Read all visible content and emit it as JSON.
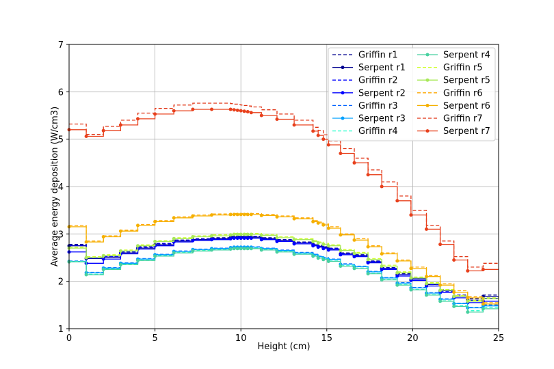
{
  "chart_data": {
    "type": "line",
    "title": "",
    "xlabel": "Height (cm)",
    "ylabel": "Average energy deposition (W/cm3)",
    "xlim": [
      0,
      25
    ],
    "ylim": [
      1,
      7
    ],
    "xticks": [
      0,
      5,
      10,
      15,
      20,
      25
    ],
    "yticks": [
      1,
      2,
      3,
      4,
      5,
      6,
      7
    ],
    "grid": true,
    "legend_position": "upper-right, two columns",
    "step_edges": [
      0,
      1,
      2,
      3,
      4,
      5,
      6.1,
      7.2,
      8.3,
      9.4,
      9.6,
      9.8,
      10.0,
      10.2,
      10.4,
      10.6,
      11.2,
      12.1,
      13.1,
      14.2,
      14.5,
      14.8,
      15.1,
      15.8,
      16.6,
      17.4,
      18.2,
      19.1,
      19.9,
      20.8,
      21.6,
      22.4,
      23.2,
      24.1,
      25
    ],
    "series": [
      {
        "name": "Griffin r1",
        "color": "#00008f",
        "style": "dashed",
        "values": [
          2.78,
          2.5,
          2.53,
          2.63,
          2.73,
          2.8,
          2.87,
          2.9,
          2.92,
          2.95,
          2.95,
          2.95,
          2.95,
          2.95,
          2.95,
          2.95,
          2.92,
          2.88,
          2.83,
          2.79,
          2.76,
          2.73,
          2.7,
          2.6,
          2.56,
          2.43,
          2.29,
          2.16,
          2.07,
          1.95,
          1.82,
          1.71,
          1.63,
          1.71
        ]
      },
      {
        "name": "Serpent r1",
        "color": "#00008f",
        "style": "solid-marker",
        "values": [
          2.75,
          2.48,
          2.51,
          2.6,
          2.7,
          2.77,
          2.85,
          2.88,
          2.9,
          2.92,
          2.93,
          2.93,
          2.93,
          2.93,
          2.93,
          2.93,
          2.9,
          2.86,
          2.81,
          2.77,
          2.74,
          2.71,
          2.68,
          2.58,
          2.54,
          2.41,
          2.27,
          2.14,
          2.05,
          1.93,
          1.8,
          1.68,
          1.6,
          1.68
        ]
      },
      {
        "name": "Griffin r2",
        "color": "#0000ff",
        "style": "dashed",
        "values": [
          2.76,
          2.49,
          2.52,
          2.62,
          2.71,
          2.79,
          2.86,
          2.89,
          2.91,
          2.93,
          2.94,
          2.94,
          2.94,
          2.94,
          2.94,
          2.94,
          2.91,
          2.87,
          2.82,
          2.78,
          2.75,
          2.72,
          2.69,
          2.59,
          2.55,
          2.42,
          2.28,
          2.14,
          2.05,
          1.93,
          1.79,
          1.68,
          1.6,
          1.64
        ]
      },
      {
        "name": "Serpent r2",
        "color": "#0000ff",
        "style": "solid-marker",
        "values": [
          2.62,
          2.38,
          2.47,
          2.58,
          2.68,
          2.75,
          2.83,
          2.86,
          2.88,
          2.9,
          2.91,
          2.91,
          2.91,
          2.91,
          2.91,
          2.91,
          2.88,
          2.84,
          2.79,
          2.75,
          2.72,
          2.69,
          2.66,
          2.56,
          2.52,
          2.39,
          2.25,
          2.11,
          2.02,
          1.9,
          1.76,
          1.65,
          1.55,
          1.58
        ]
      },
      {
        "name": "Griffin r3",
        "color": "#0063ff",
        "style": "dashed",
        "values": [
          2.43,
          2.19,
          2.29,
          2.39,
          2.48,
          2.57,
          2.64,
          2.68,
          2.7,
          2.72,
          2.73,
          2.73,
          2.73,
          2.73,
          2.73,
          2.73,
          2.7,
          2.66,
          2.61,
          2.57,
          2.53,
          2.5,
          2.47,
          2.37,
          2.32,
          2.21,
          2.08,
          1.97,
          1.87,
          1.76,
          1.63,
          1.54,
          1.45,
          1.5
        ]
      },
      {
        "name": "Serpent r3",
        "color": "#00a0ff",
        "style": "solid-marker",
        "values": [
          2.42,
          2.18,
          2.28,
          2.38,
          2.47,
          2.56,
          2.63,
          2.67,
          2.69,
          2.71,
          2.72,
          2.72,
          2.72,
          2.72,
          2.72,
          2.72,
          2.69,
          2.65,
          2.6,
          2.56,
          2.52,
          2.49,
          2.46,
          2.36,
          2.31,
          2.2,
          2.07,
          1.96,
          1.86,
          1.75,
          1.62,
          1.53,
          1.44,
          1.48
        ]
      },
      {
        "name": "Griffin r4",
        "color": "#29ffce",
        "style": "dashed",
        "values": [
          2.42,
          2.15,
          2.26,
          2.36,
          2.45,
          2.54,
          2.61,
          2.65,
          2.67,
          2.69,
          2.7,
          2.7,
          2.7,
          2.7,
          2.7,
          2.7,
          2.67,
          2.63,
          2.58,
          2.54,
          2.5,
          2.47,
          2.43,
          2.33,
          2.28,
          2.17,
          2.04,
          1.93,
          1.83,
          1.72,
          1.59,
          1.49,
          1.38,
          1.45
        ]
      },
      {
        "name": "Serpent r4",
        "color": "#48d1a0",
        "style": "solid-marker",
        "values": [
          2.41,
          2.14,
          2.25,
          2.35,
          2.44,
          2.53,
          2.6,
          2.64,
          2.66,
          2.68,
          2.69,
          2.69,
          2.69,
          2.69,
          2.69,
          2.69,
          2.66,
          2.62,
          2.57,
          2.53,
          2.49,
          2.46,
          2.42,
          2.32,
          2.27,
          2.16,
          2.03,
          1.92,
          1.82,
          1.71,
          1.58,
          1.47,
          1.35,
          1.42
        ]
      },
      {
        "name": "Griffin r5",
        "color": "#ceff29",
        "style": "dashed",
        "values": [
          2.72,
          2.52,
          2.56,
          2.66,
          2.77,
          2.86,
          2.92,
          2.96,
          2.98,
          3.0,
          3.01,
          3.01,
          3.01,
          3.01,
          3.01,
          3.01,
          2.99,
          2.94,
          2.9,
          2.86,
          2.83,
          2.8,
          2.77,
          2.67,
          2.61,
          2.48,
          2.34,
          2.2,
          2.09,
          1.97,
          1.83,
          1.7,
          1.6,
          1.65
        ]
      },
      {
        "name": "Serpent r5",
        "color": "#a8e85a",
        "style": "solid-marker",
        "values": [
          2.7,
          2.5,
          2.54,
          2.64,
          2.75,
          2.84,
          2.9,
          2.94,
          2.96,
          2.98,
          2.99,
          2.99,
          2.99,
          2.99,
          2.99,
          2.99,
          2.97,
          2.92,
          2.88,
          2.84,
          2.81,
          2.78,
          2.75,
          2.65,
          2.59,
          2.46,
          2.32,
          2.18,
          2.07,
          1.95,
          1.81,
          1.68,
          1.58,
          1.63
        ]
      },
      {
        "name": "Griffin r6",
        "color": "#ffa700",
        "style": "dashed",
        "values": [
          3.18,
          2.85,
          2.96,
          3.08,
          3.2,
          3.28,
          3.36,
          3.4,
          3.42,
          3.43,
          3.43,
          3.43,
          3.43,
          3.43,
          3.43,
          3.43,
          3.41,
          3.38,
          3.34,
          3.28,
          3.25,
          3.21,
          3.15,
          3.0,
          2.9,
          2.75,
          2.6,
          2.45,
          2.3,
          2.12,
          1.95,
          1.8,
          1.68,
          1.55
        ]
      },
      {
        "name": "Serpent r6",
        "color": "#f5b000",
        "style": "solid-marker",
        "values": [
          3.15,
          2.83,
          2.94,
          3.06,
          3.18,
          3.26,
          3.34,
          3.38,
          3.4,
          3.41,
          3.41,
          3.41,
          3.41,
          3.41,
          3.41,
          3.41,
          3.39,
          3.36,
          3.32,
          3.26,
          3.23,
          3.19,
          3.12,
          2.98,
          2.87,
          2.73,
          2.58,
          2.43,
          2.27,
          2.1,
          1.92,
          1.77,
          1.65,
          1.52
        ]
      },
      {
        "name": "Griffin r7",
        "color": "#e03010",
        "style": "dashed",
        "values": [
          5.32,
          5.1,
          5.27,
          5.4,
          5.55,
          5.65,
          5.72,
          5.76,
          5.76,
          5.75,
          5.74,
          5.73,
          5.72,
          5.71,
          5.7,
          5.68,
          5.62,
          5.53,
          5.4,
          5.25,
          5.18,
          5.09,
          4.96,
          4.8,
          4.6,
          4.35,
          4.1,
          3.8,
          3.5,
          3.18,
          2.85,
          2.52,
          2.3,
          2.38
        ]
      },
      {
        "name": "Serpent r7",
        "color": "#e8401c",
        "style": "solid-marker",
        "values": [
          5.2,
          5.06,
          5.18,
          5.3,
          5.43,
          5.53,
          5.6,
          5.63,
          5.63,
          5.63,
          5.62,
          5.61,
          5.6,
          5.59,
          5.58,
          5.56,
          5.5,
          5.42,
          5.3,
          5.17,
          5.08,
          5.0,
          4.88,
          4.7,
          4.5,
          4.25,
          4.0,
          3.7,
          3.4,
          3.1,
          2.78,
          2.45,
          2.22,
          2.25
        ]
      }
    ]
  }
}
